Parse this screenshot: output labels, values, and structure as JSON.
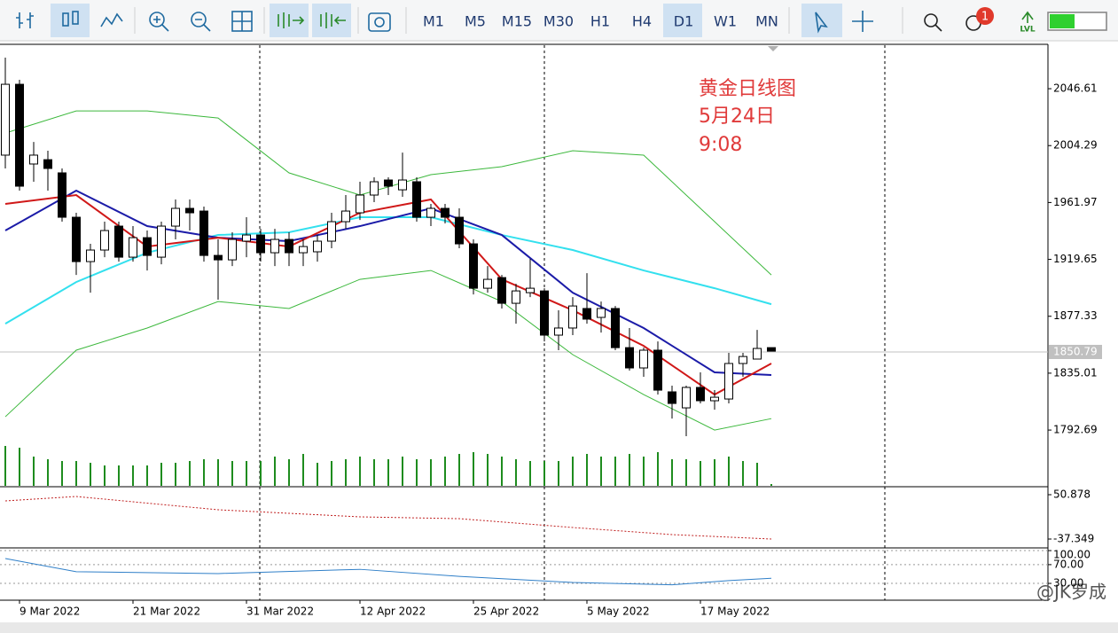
{
  "toolbar": {
    "timeframes": [
      "M1",
      "M5",
      "M15",
      "M30",
      "H1",
      "H4",
      "D1",
      "W1",
      "MN"
    ],
    "active_timeframe": "D1",
    "notification_count": "1",
    "lvl_label": "LVL"
  },
  "chart_data": {
    "type": "candlestick",
    "annotation": [
      "黄金日线图",
      "5月24日",
      "9:08"
    ],
    "categories": [
      null,
      "9 Mar 2022",
      null,
      null,
      null,
      null,
      null,
      null,
      null,
      "21 Mar 2022",
      null,
      null,
      null,
      null,
      null,
      null,
      null,
      "31 Mar 2022",
      null,
      null,
      null,
      null,
      null,
      null,
      null,
      "12 Apr 2022",
      null,
      null,
      null,
      null,
      null,
      null,
      null,
      "25 Apr 2022",
      null,
      null,
      null,
      null,
      null,
      null,
      null,
      "5 May 2022",
      null,
      null,
      null,
      null,
      null,
      null,
      null,
      "17 May 2022",
      null,
      null,
      null,
      null,
      null
    ],
    "open": [
      1997.2,
      2049.9,
      1990.6,
      1993.8,
      1984.0,
      1951.0,
      1918.0,
      1926.6,
      1944.4,
      1921.3,
      1935.8,
      1921.3,
      1944.4,
      1957.6,
      1955.6,
      1922.6,
      1919.3,
      1933.2,
      1937.8,
      1924.6,
      1934.5,
      1924.6,
      1925.3,
      1933.2,
      1947.7,
      1954.3,
      1967.5,
      1978.7,
      1971.4,
      1977.4,
      1951.0,
      1957.6,
      1951.0,
      1931.2,
      1898.2,
      1906.1,
      1887.0,
      1894.9,
      1896.2,
      1863.3,
      1868.6,
      1883.1,
      1876.5,
      1883.1,
      1854.0,
      1838.9,
      1852.1,
      1821.1,
      1809.2,
      1824.4,
      1814.5,
      1815.8,
      1842.2,
      1845.5,
      1854.0
    ],
    "high": [
      2069.7,
      2053.2,
      2007.0,
      2000.5,
      1987.3,
      1954.3,
      1931.2,
      1947.7,
      1947.7,
      1944.4,
      1941.1,
      1947.7,
      1964.2,
      1964.2,
      1958.9,
      1934.5,
      1939.8,
      1951.0,
      1942.4,
      1942.4,
      1939.8,
      1934.5,
      1937.8,
      1954.3,
      1967.5,
      1977.4,
      1980.7,
      1980.7,
      1999.1,
      1980.7,
      1960.9,
      1960.9,
      1957.6,
      1934.5,
      1914.7,
      1908.1,
      1901.5,
      1920.0,
      1898.2,
      1881.8,
      1891.6,
      1909.4,
      1888.3,
      1885.0,
      1868.6,
      1854.0,
      1858.6,
      1825.7,
      1825.7,
      1835.6,
      1822.4,
      1850.1,
      1850.1,
      1867.2,
      1854.0
    ],
    "low": [
      1987.3,
      1970.8,
      1977.4,
      1970.8,
      1947.7,
      1908.1,
      1894.9,
      1921.3,
      1918.0,
      1918.0,
      1911.4,
      1916.0,
      1934.5,
      1941.1,
      1918.0,
      1889.7,
      1914.7,
      1921.3,
      1918.0,
      1914.7,
      1914.7,
      1914.7,
      1918.0,
      1927.9,
      1942.4,
      1949.0,
      1962.2,
      1967.5,
      1966.2,
      1947.7,
      1944.4,
      1946.4,
      1927.9,
      1893.6,
      1894.9,
      1883.1,
      1871.8,
      1891.6,
      1858.6,
      1852.1,
      1863.3,
      1871.8,
      1865.2,
      1852.1,
      1836.9,
      1832.3,
      1819.1,
      1801.2,
      1788.1,
      1812.5,
      1807.8,
      1812.5,
      1832.3,
      1845.5,
      1851.4
    ],
    "close": [
      2049.9,
      1974.1,
      1997.2,
      1987.3,
      1951.0,
      1918.0,
      1926.6,
      1941.1,
      1921.3,
      1935.8,
      1922.6,
      1944.4,
      1957.6,
      1954.3,
      1922.6,
      1919.3,
      1934.5,
      1937.8,
      1924.6,
      1934.5,
      1924.6,
      1929.2,
      1933.2,
      1947.7,
      1955.6,
      1967.5,
      1977.4,
      1974.1,
      1978.7,
      1951.0,
      1957.6,
      1951.0,
      1931.2,
      1898.2,
      1904.8,
      1887.0,
      1896.2,
      1898.2,
      1863.3,
      1868.6,
      1885.0,
      1875.2,
      1883.1,
      1854.0,
      1838.9,
      1852.1,
      1822.4,
      1812.5,
      1824.4,
      1814.5,
      1817.1,
      1842.2,
      1847.4,
      1853.4,
      1851.4
    ],
    "volume": [
      45,
      43,
      33,
      30,
      28,
      28,
      26,
      23,
      23,
      23,
      23,
      26,
      26,
      28,
      30,
      30,
      28,
      28,
      28,
      33,
      30,
      36,
      26,
      28,
      30,
      33,
      30,
      30,
      33,
      30,
      30,
      33,
      36,
      38,
      36,
      33,
      30,
      28,
      28,
      28,
      33,
      36,
      33,
      33,
      36,
      33,
      38,
      30,
      30,
      28,
      30,
      33,
      28,
      26,
      2
    ],
    "overlays": [
      {
        "color": "#3cb83c",
        "x": [
          0,
          5,
          10,
          15,
          20,
          25,
          30,
          35,
          40,
          45,
          50,
          54
        ],
        "values": [
          2013.6,
          2030.1,
          2030.1,
          2024.8,
          1984.0,
          1967.5,
          1982.7,
          1988.6,
          2000.5,
          1997.2,
          1947.7,
          1908.1
        ]
      },
      {
        "color": "#3cb83c",
        "x": [
          0,
          5,
          10,
          15,
          20,
          25,
          30,
          35,
          40,
          45,
          50,
          54
        ],
        "values": [
          1802.6,
          1852.1,
          1868.6,
          1888.3,
          1883.1,
          1904.8,
          1911.4,
          1888.3,
          1848.8,
          1819.1,
          1792.7,
          1801.2
        ]
      },
      {
        "color": "#33e0ee",
        "x": [
          0,
          5,
          10,
          15,
          20,
          25,
          30,
          35,
          40,
          45,
          50,
          54
        ],
        "values": [
          1871.8,
          1902.8,
          1924.6,
          1937.8,
          1939.8,
          1951.0,
          1951.0,
          1937.8,
          1926.6,
          1911.4,
          1898.2,
          1886.3
        ]
      },
      {
        "color": "#1b1ba8",
        "x": [
          0,
          5,
          10,
          15,
          20,
          25,
          30,
          35,
          40,
          45,
          50,
          54
        ],
        "values": [
          1941.1,
          1970.8,
          1944.4,
          1935.8,
          1933.2,
          1944.4,
          1957.6,
          1937.8,
          1894.9,
          1868.6,
          1835.6,
          1833.6
        ]
      },
      {
        "color": "#d01818",
        "x": [
          0,
          5,
          10,
          15,
          20,
          25,
          30,
          35,
          40,
          45,
          50,
          54
        ],
        "values": [
          1960.9,
          1967.5,
          1929.2,
          1935.8,
          1929.2,
          1954.3,
          1964.2,
          1904.8,
          1881.8,
          1855.3,
          1819.1,
          1842.2
        ]
      }
    ],
    "up_color": "#ffffff",
    "down_color": "#000000",
    "volume_color": "#1e8c1e",
    "ylim": [
      1751.2,
      2078.3
    ],
    "yticks": [
      2046.61,
      2004.29,
      1961.97,
      1919.65,
      1877.33,
      1835.01,
      1792.69
    ],
    "current_price": 1850.79
  },
  "indicators": [
    {
      "ylim": [
        -53.2,
        65.0
      ],
      "yticks": [
        50.878,
        -37.349
      ],
      "color": "#c02020",
      "x": [
        0,
        5,
        15,
        25,
        32,
        40,
        47,
        54
      ],
      "values": [
        38.5,
        47.3,
        20.9,
        6.8,
        3.2,
        -14.4,
        -28.5,
        -37.3
      ]
    },
    {
      "ylim": [
        -4,
        102
      ],
      "yticks": [
        {
          "value": 100,
          "label": "100.00"
        },
        {
          "value": 70,
          "label": "70.00"
        },
        {
          "value": 30,
          "label": "30.00"
        }
      ],
      "color": "#2f7fc8",
      "x": [
        0,
        5,
        15,
        25,
        32,
        40,
        47,
        51,
        54
      ],
      "values": [
        83,
        55,
        51,
        60,
        45,
        32,
        27,
        36,
        41
      ]
    }
  ],
  "watermark": "@JK罗成"
}
